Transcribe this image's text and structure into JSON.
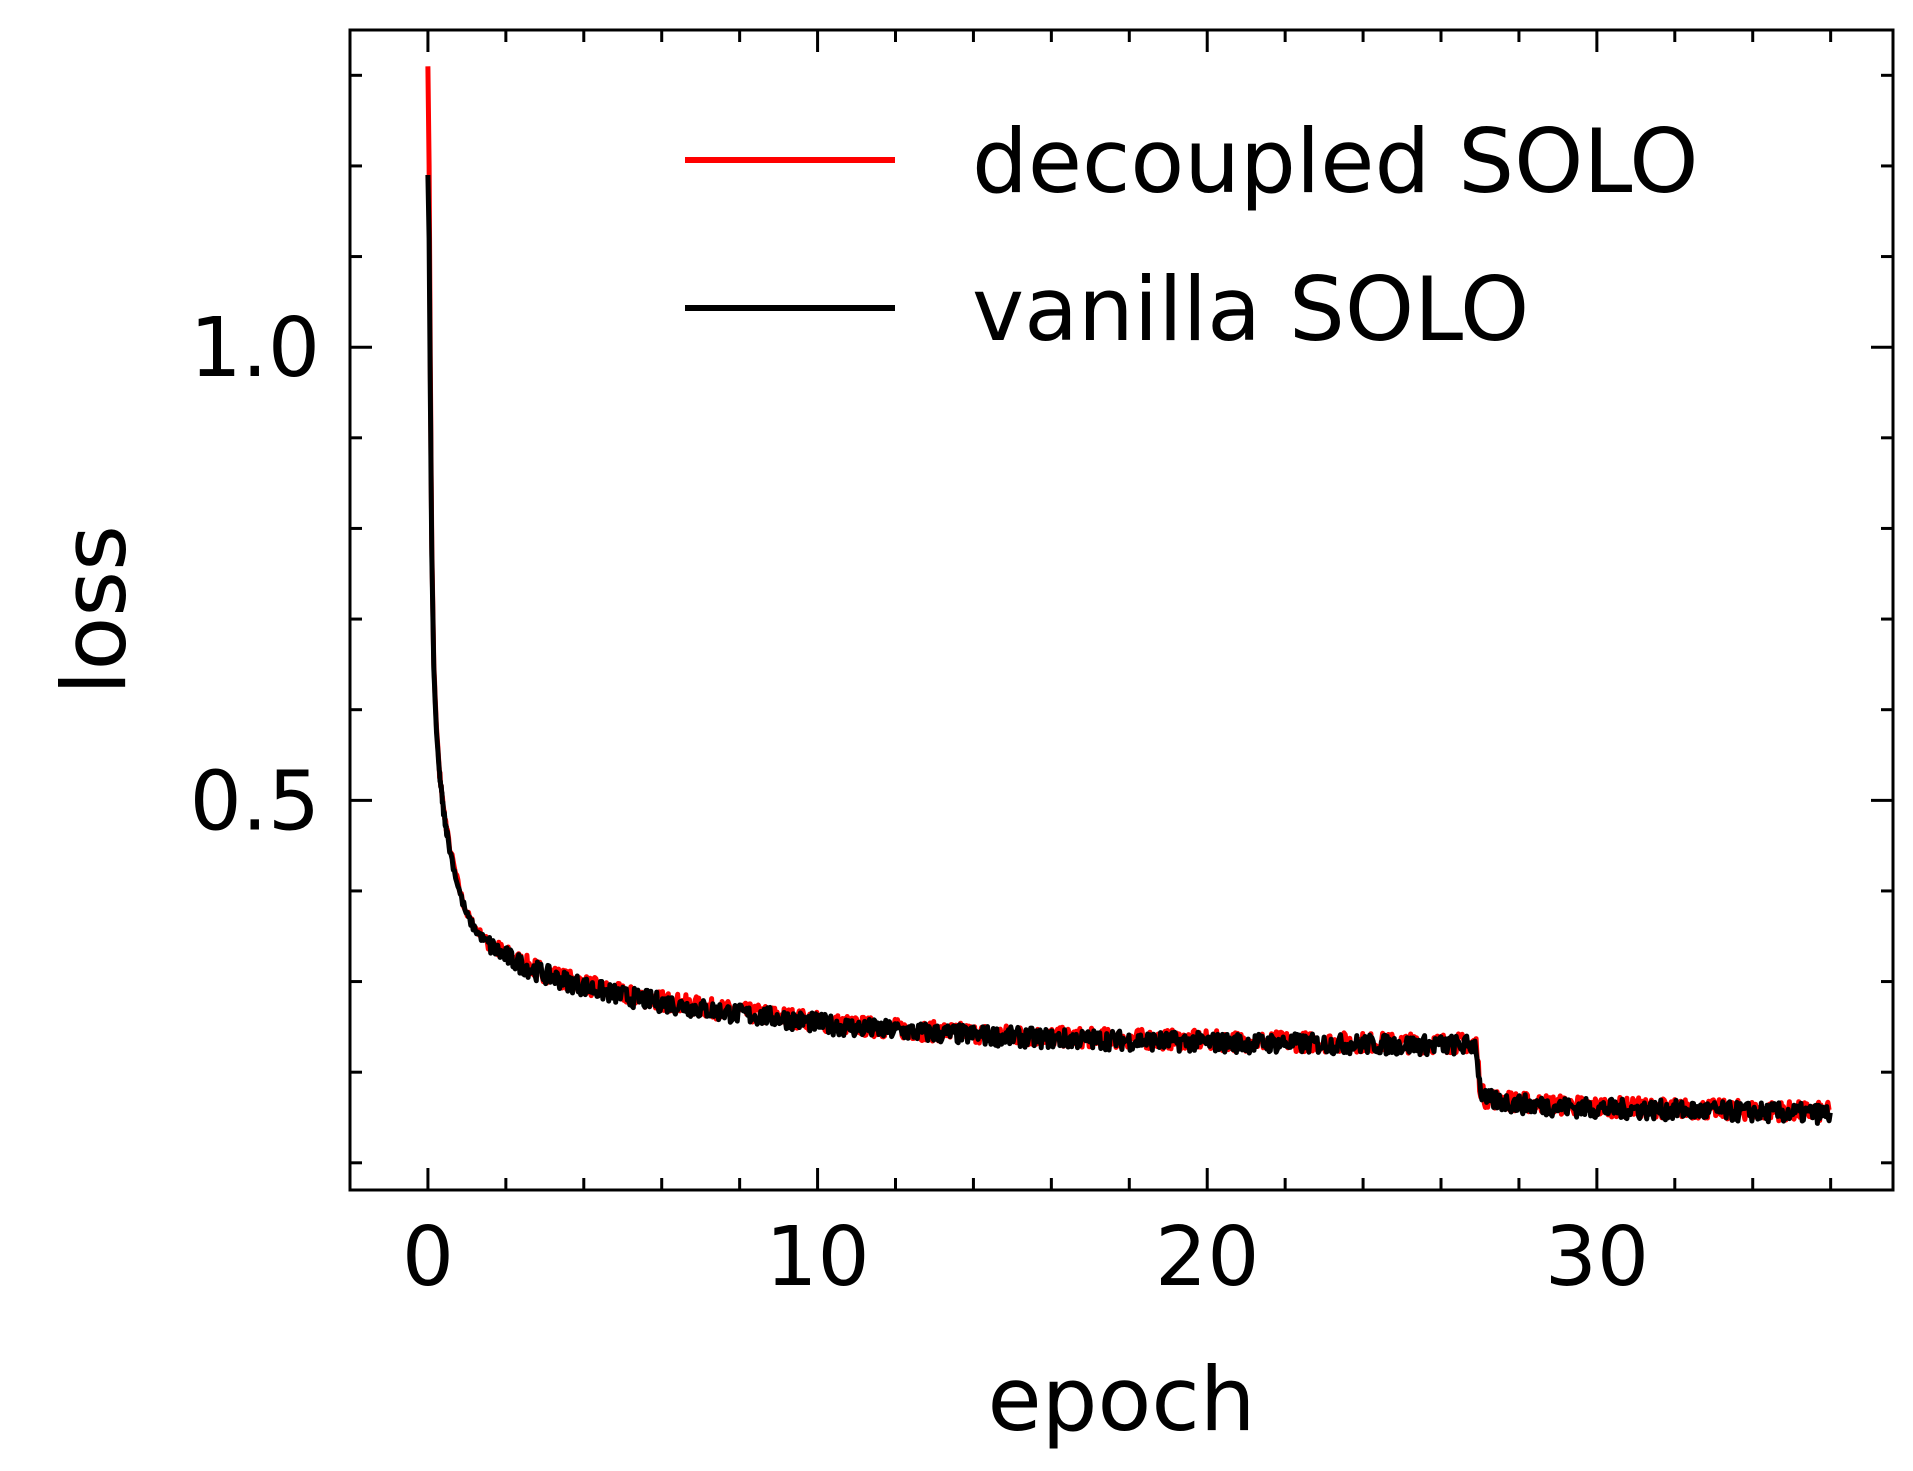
{
  "chart_data": {
    "type": "line",
    "xlabel": "epoch",
    "ylabel": "loss",
    "xlim": [
      -2,
      37.6
    ],
    "ylim": [
      0.07,
      1.35
    ],
    "xticks": [
      0,
      10,
      20,
      30
    ],
    "xtick_labels": [
      "0",
      "10",
      "20",
      "30"
    ],
    "xminor_step": 2,
    "yticks": [
      0.5,
      1.0
    ],
    "ytick_labels": [
      "0.5",
      "1.0"
    ],
    "yminor_step": 0.1,
    "tick_direction": "in",
    "grid": false,
    "legend": {
      "position": "top-right",
      "frame": false
    },
    "series": [
      {
        "name": "decoupled SOLO",
        "color": "#ff0000",
        "points": [
          [
            0.0,
            1.31
          ],
          [
            0.03,
            1.2
          ],
          [
            0.06,
            0.98
          ],
          [
            0.1,
            0.78
          ],
          [
            0.15,
            0.65
          ],
          [
            0.22,
            0.58
          ],
          [
            0.3,
            0.53
          ],
          [
            0.4,
            0.49
          ],
          [
            0.55,
            0.45
          ],
          [
            0.7,
            0.42
          ],
          [
            0.85,
            0.395
          ],
          [
            1.0,
            0.375
          ],
          [
            1.2,
            0.36
          ],
          [
            1.5,
            0.345
          ],
          [
            1.8,
            0.335
          ],
          [
            2.2,
            0.325
          ],
          [
            2.6,
            0.317
          ],
          [
            3.0,
            0.31
          ],
          [
            3.5,
            0.303
          ],
          [
            4.0,
            0.297
          ],
          [
            4.5,
            0.291
          ],
          [
            5.0,
            0.286
          ],
          [
            6.0,
            0.279
          ],
          [
            7.0,
            0.272
          ],
          [
            8.0,
            0.266
          ],
          [
            9.0,
            0.262
          ],
          [
            10.0,
            0.256
          ],
          [
            11.0,
            0.251
          ],
          [
            12.0,
            0.248
          ],
          [
            13.0,
            0.245
          ],
          [
            14.0,
            0.243
          ],
          [
            15.0,
            0.241
          ],
          [
            16.0,
            0.239
          ],
          [
            17.0,
            0.238
          ],
          [
            18.0,
            0.237
          ],
          [
            19.0,
            0.236
          ],
          [
            20.0,
            0.235
          ],
          [
            21.0,
            0.234
          ],
          [
            22.0,
            0.234
          ],
          [
            23.0,
            0.233
          ],
          [
            24.0,
            0.233
          ],
          [
            25.0,
            0.232
          ],
          [
            26.0,
            0.232
          ],
          [
            26.9,
            0.232
          ],
          [
            27.0,
            0.185
          ],
          [
            27.1,
            0.172
          ],
          [
            27.5,
            0.17
          ],
          [
            28.0,
            0.167
          ],
          [
            29.0,
            0.164
          ],
          [
            30.0,
            0.162
          ],
          [
            31.0,
            0.161
          ],
          [
            32.0,
            0.16
          ],
          [
            33.0,
            0.159
          ],
          [
            34.0,
            0.158
          ],
          [
            35.0,
            0.157
          ],
          [
            36.0,
            0.156
          ]
        ]
      },
      {
        "name": "vanilla SOLO",
        "color": "#000000",
        "points": [
          [
            0.0,
            1.19
          ],
          [
            0.03,
            1.12
          ],
          [
            0.06,
            0.95
          ],
          [
            0.1,
            0.77
          ],
          [
            0.15,
            0.645
          ],
          [
            0.22,
            0.575
          ],
          [
            0.3,
            0.528
          ],
          [
            0.4,
            0.488
          ],
          [
            0.55,
            0.448
          ],
          [
            0.7,
            0.418
          ],
          [
            0.85,
            0.393
          ],
          [
            1.0,
            0.373
          ],
          [
            1.2,
            0.358
          ],
          [
            1.5,
            0.343
          ],
          [
            1.8,
            0.333
          ],
          [
            2.2,
            0.323
          ],
          [
            2.6,
            0.315
          ],
          [
            3.0,
            0.308
          ],
          [
            3.5,
            0.301
          ],
          [
            4.0,
            0.295
          ],
          [
            4.5,
            0.289
          ],
          [
            5.0,
            0.284
          ],
          [
            6.0,
            0.277
          ],
          [
            7.0,
            0.27
          ],
          [
            8.0,
            0.264
          ],
          [
            9.0,
            0.26
          ],
          [
            10.0,
            0.254
          ],
          [
            11.0,
            0.249
          ],
          [
            12.0,
            0.246
          ],
          [
            13.0,
            0.243
          ],
          [
            14.0,
            0.241
          ],
          [
            15.0,
            0.239
          ],
          [
            16.0,
            0.237
          ],
          [
            17.0,
            0.236
          ],
          [
            18.0,
            0.235
          ],
          [
            19.0,
            0.234
          ],
          [
            20.0,
            0.233
          ],
          [
            21.0,
            0.232
          ],
          [
            22.0,
            0.232
          ],
          [
            23.0,
            0.231
          ],
          [
            24.0,
            0.231
          ],
          [
            25.0,
            0.23
          ],
          [
            26.0,
            0.23
          ],
          [
            26.9,
            0.23
          ],
          [
            27.0,
            0.183
          ],
          [
            27.1,
            0.17
          ],
          [
            27.5,
            0.168
          ],
          [
            28.0,
            0.165
          ],
          [
            29.0,
            0.162
          ],
          [
            30.0,
            0.16
          ],
          [
            31.0,
            0.159
          ],
          [
            32.0,
            0.158
          ],
          [
            33.0,
            0.157
          ],
          [
            34.0,
            0.156
          ],
          [
            35.0,
            0.155
          ],
          [
            36.0,
            0.154
          ]
        ]
      }
    ]
  }
}
